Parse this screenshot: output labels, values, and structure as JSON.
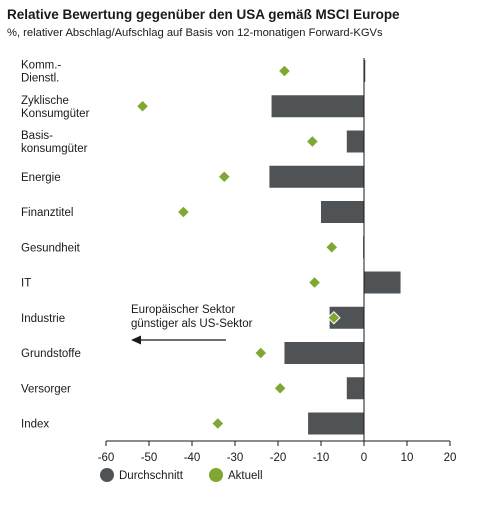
{
  "chart_data": {
    "type": "bar",
    "title": "Relative Bewertung gegenüber den USA gemäß MSCI Europe",
    "subtitle": "%, relativer Abschlag/Aufschlag auf Basis von 12-monatigen Forward-KGVs",
    "orientation": "horizontal",
    "categories": [
      [
        "Komm.-",
        "Dienstl."
      ],
      [
        "Zyklische",
        "Konsumgüter"
      ],
      [
        "Basis-",
        "konsumgüter"
      ],
      [
        "Energie"
      ],
      [
        "Finanztitel"
      ],
      [
        "Gesundheit"
      ],
      [
        "IT"
      ],
      [
        "Industrie"
      ],
      [
        "Grundstoffe"
      ],
      [
        "Versorger"
      ],
      [
        "Index"
      ]
    ],
    "series": [
      {
        "name": "Durchschnitt",
        "type": "bar",
        "color": "#505356",
        "values": [
          0.3,
          -21.5,
          -4,
          -22,
          -10,
          -0.2,
          8.5,
          -8,
          -18.5,
          -4,
          -13
        ]
      },
      {
        "name": "Aktuell",
        "type": "marker",
        "marker": "diamond",
        "color": "#7ea832",
        "values": [
          -18.5,
          -51.5,
          -12,
          -32.5,
          -42,
          -7.5,
          -11.5,
          -7,
          -24,
          -19.5,
          -34
        ]
      }
    ],
    "xlim": [
      -60,
      20
    ],
    "xticks": [
      -60,
      -50,
      -40,
      -30,
      -20,
      -10,
      0,
      10,
      20
    ],
    "annotation": {
      "lines": [
        "Europäischer Sektor",
        "günstiger als US-Sektor"
      ],
      "arrow": "left"
    },
    "legend_position": "bottom-left"
  }
}
